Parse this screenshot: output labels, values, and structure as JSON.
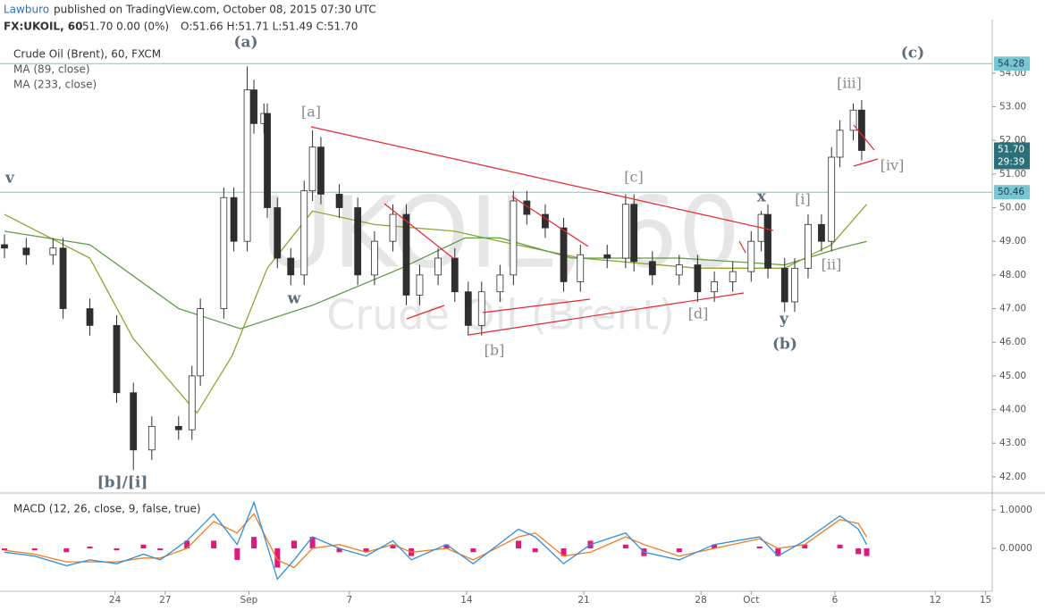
{
  "header": {
    "author": "Lawburo",
    "published": "published on TradingView.com, October 08, 2015 07:30 UTC",
    "symbol": "FX:UKOIL, 60",
    "quote": "51.70 0.00 (0%)",
    "ohlc": "O:51.66 H:51.71 L:51.49 C:51.70"
  },
  "chart_data": [
    {
      "type": "candlestick",
      "title": "Crude Oil (Brent), 60, FXCM",
      "watermark": [
        "UKOIL, 60",
        "Crude Oil (Brent)"
      ],
      "x": [
        17.4,
        18.7,
        20.3,
        20.9,
        22.5,
        24.1,
        25.1,
        26.2,
        27.8,
        28.6,
        29.1,
        30.5,
        31.1,
        31.9,
        32.3,
        32.9,
        33.1,
        33.7,
        34.5,
        35.3,
        35.8,
        36.3,
        37.4,
        38.5,
        39.5,
        40.6,
        41.4,
        42.2,
        43.3,
        44.3,
        45.1,
        45.9,
        47.0,
        47.8,
        48.6,
        49.7,
        50.8,
        51.8,
        53.4,
        54.5,
        55.0,
        56.1,
        57.7,
        58.8,
        59.8,
        60.9,
        62.0,
        62.6,
        63.0,
        64.0,
        64.6,
        65.4,
        66.2,
        66.8,
        67.3,
        68.1,
        68.6
      ],
      "open": [
        48.9,
        48.8,
        48.6,
        48.8,
        47.0,
        46.5,
        44.5,
        42.8,
        43.5,
        43.4,
        45.0,
        47.0,
        50.3,
        49.0,
        53.5,
        52.5,
        52.8,
        50.0,
        48.5,
        48.0,
        50.5,
        51.8,
        50.4,
        50.0,
        48.0,
        49.0,
        49.8,
        47.4,
        48.0,
        48.5,
        47.5,
        46.5,
        47.5,
        48.0,
        50.2,
        49.8,
        49.4,
        47.8,
        48.6,
        48.5,
        50.1,
        48.4,
        48.0,
        48.3,
        47.5,
        47.8,
        48.1,
        49.0,
        49.8,
        48.2,
        47.2,
        48.2,
        49.5,
        49.0,
        51.5,
        52.3,
        52.9
      ],
      "high": [
        49.2,
        49.1,
        49.1,
        49.1,
        47.3,
        46.8,
        44.8,
        43.8,
        43.8,
        45.3,
        47.3,
        50.6,
        50.6,
        54.2,
        53.8,
        53.1,
        53.1,
        50.3,
        48.8,
        50.8,
        52.3,
        52.1,
        50.7,
        50.3,
        49.3,
        50.1,
        50.1,
        48.3,
        48.8,
        48.8,
        47.8,
        47.8,
        48.3,
        50.5,
        50.5,
        50.1,
        49.7,
        48.9,
        48.9,
        50.4,
        50.4,
        48.7,
        48.6,
        48.6,
        48.1,
        48.4,
        49.3,
        49.9,
        50.1,
        48.5,
        48.5,
        49.8,
        49.8,
        51.8,
        52.6,
        53.1,
        53.2
      ],
      "low": [
        48.5,
        48.3,
        48.3,
        46.7,
        46.2,
        44.2,
        42.2,
        42.5,
        43.1,
        43.1,
        44.7,
        46.7,
        48.7,
        48.7,
        52.2,
        52.2,
        49.7,
        48.2,
        47.7,
        47.7,
        50.2,
        50.1,
        49.7,
        47.7,
        47.7,
        48.7,
        47.1,
        47.1,
        47.7,
        47.2,
        46.2,
        46.2,
        47.2,
        47.7,
        49.5,
        49.1,
        47.5,
        47.5,
        48.2,
        48.2,
        48.1,
        47.7,
        47.7,
        47.2,
        47.2,
        47.5,
        47.8,
        48.7,
        47.9,
        46.9,
        46.9,
        47.9,
        48.7,
        48.7,
        51.2,
        52.0,
        51.4
      ],
      "close": [
        48.8,
        48.6,
        48.8,
        47.0,
        46.5,
        44.5,
        42.8,
        43.5,
        43.4,
        45.0,
        47.0,
        50.3,
        49.0,
        53.5,
        52.5,
        52.8,
        50.0,
        48.5,
        48.0,
        50.5,
        51.8,
        50.4,
        50.0,
        48.0,
        49.0,
        49.8,
        47.4,
        48.0,
        48.5,
        47.5,
        46.5,
        47.5,
        48.0,
        50.2,
        49.8,
        49.4,
        47.8,
        48.6,
        48.5,
        50.1,
        48.4,
        48.0,
        48.3,
        47.5,
        47.8,
        48.1,
        49.0,
        49.8,
        48.2,
        47.2,
        48.2,
        49.5,
        49.0,
        51.5,
        52.3,
        52.9,
        51.7
      ],
      "up_color": "#ffffff",
      "down_color": "#2e2e2e",
      "wick_color": "#2e2e2e",
      "series": [
        {
          "name": "MA (89, close)",
          "color": "#8ea534",
          "x": [
            17.4,
            22.5,
            25.1,
            28.9,
            31.0,
            33.1,
            35.8,
            39.5,
            44.3,
            47.0,
            51.8,
            58.8,
            64.0,
            66.8,
            68.9
          ],
          "values": [
            49.8,
            48.5,
            46.1,
            43.9,
            45.6,
            48.2,
            49.9,
            49.5,
            49.3,
            49.0,
            48.5,
            48.2,
            48.2,
            48.9,
            50.1
          ]
        },
        {
          "name": "MA (233, close)",
          "color": "#5c9e46",
          "x": [
            17.4,
            22.5,
            27.8,
            31.5,
            35.8,
            41.1,
            44.9,
            47.0,
            51.3,
            57.7,
            64.0,
            67.3,
            68.9
          ],
          "values": [
            49.3,
            48.9,
            47.0,
            46.4,
            47.1,
            48.2,
            49.1,
            49.1,
            48.5,
            48.5,
            48.3,
            48.8,
            49.0
          ]
        }
      ],
      "price_lines": [
        {
          "value": 54.28,
          "color": "#78c6d2"
        },
        {
          "value": 50.46,
          "color": "#78c6d2"
        }
      ],
      "last_price": {
        "value": 51.7,
        "label": "51.70",
        "color": "#2b6f79"
      },
      "countdown": "29:39",
      "annotations": [
        "(a)",
        "[a]",
        "w",
        "v",
        "[b]/[i]",
        "[b]",
        "[c]",
        "[d]",
        "x",
        "y",
        "(b)",
        "[i]",
        "[ii]",
        "[iii]",
        "[iv]",
        "(c)"
      ],
      "ylim": [
        41.52,
        55.11
      ],
      "yticks": [
        {
          "value": 42,
          "label": "42.00"
        },
        {
          "value": 43,
          "label": "43.00"
        },
        {
          "value": 44,
          "label": "44.00"
        },
        {
          "value": 45,
          "label": "45.00"
        },
        {
          "value": 46,
          "label": "46.00"
        },
        {
          "value": 47,
          "label": "47.00"
        },
        {
          "value": 48,
          "label": "48.00"
        },
        {
          "value": 49,
          "label": "49.00"
        },
        {
          "value": 50,
          "label": "50.00"
        },
        {
          "value": 51,
          "label": "51.00"
        },
        {
          "value": 52,
          "label": "52.00"
        },
        {
          "value": 53,
          "label": "53.00"
        },
        {
          "value": 54,
          "label": "54.00"
        }
      ],
      "xlim": [
        17.4,
        76.4
      ]
    },
    {
      "type": "macd",
      "title": "MACD (12, 26, close, 9, false, true)",
      "x": [
        17.4,
        19.2,
        21.1,
        22.5,
        24.1,
        25.7,
        26.7,
        28.3,
        29.9,
        31.3,
        32.3,
        33.7,
        34.7,
        35.8,
        37.4,
        39.0,
        40.6,
        41.7,
        43.8,
        45.4,
        48.1,
        49.1,
        50.8,
        52.4,
        54.5,
        55.6,
        57.7,
        59.8,
        62.5,
        63.6,
        65.2,
        67.3,
        68.4,
        68.9
      ],
      "macd": [
        -0.1,
        -0.2,
        -0.45,
        -0.3,
        -0.4,
        -0.15,
        -0.3,
        0.2,
        0.9,
        0.1,
        1.2,
        -0.8,
        -0.3,
        0.3,
        0,
        -0.2,
        0.2,
        -0.3,
        0.1,
        -0.4,
        0.5,
        0.3,
        -0.4,
        0.1,
        0.4,
        -0.1,
        -0.3,
        0.1,
        0.3,
        -0.2,
        0.2,
        0.85,
        0.5,
        0.1
      ],
      "signal": [
        -0.05,
        -0.15,
        -0.35,
        -0.35,
        -0.35,
        -0.25,
        -0.25,
        0.0,
        0.7,
        0.4,
        0.9,
        -0.3,
        -0.5,
        0.0,
        0.1,
        -0.1,
        0.1,
        -0.1,
        0.0,
        -0.3,
        0.3,
        0.4,
        -0.2,
        -0.1,
        0.3,
        0.1,
        -0.2,
        0.0,
        0.25,
        0.0,
        0.1,
        0.75,
        0.65,
        0.3
      ],
      "histogram": [
        -0.05,
        -0.05,
        -0.1,
        0.05,
        -0.05,
        0.1,
        -0.05,
        0.2,
        0.2,
        -0.3,
        0.3,
        -0.5,
        0.2,
        0.3,
        -0.1,
        -0.1,
        0.1,
        -0.2,
        0.1,
        -0.1,
        0.2,
        -0.1,
        -0.2,
        0.2,
        0.1,
        -0.2,
        -0.1,
        0.1,
        0.05,
        -0.2,
        0.1,
        0.1,
        -0.15,
        -0.2
      ],
      "macd_color": "#2f8ee0",
      "signal_color": "#f07d1e",
      "hist_color": "#e0197a",
      "ylim": [
        -1.07,
        1.42
      ],
      "yticks": [
        {
          "value": 1,
          "label": "1.0000"
        },
        {
          "value": 0,
          "label": "0.0000"
        }
      ],
      "xlim": [
        17.4,
        76.4
      ],
      "xticks": [
        24,
        27,
        {
          "value": 32,
          "label": "Sep"
        },
        {
          "value": 38,
          "label": "7"
        },
        {
          "value": 45,
          "label": "14"
        },
        {
          "value": 52,
          "label": "21"
        },
        {
          "value": 59,
          "label": "28"
        },
        {
          "value": 62,
          "label": "Oct"
        },
        {
          "value": 67,
          "label": "6"
        },
        {
          "value": 73,
          "label": "12"
        },
        {
          "value": 76,
          "label": "15"
        }
      ]
    }
  ]
}
